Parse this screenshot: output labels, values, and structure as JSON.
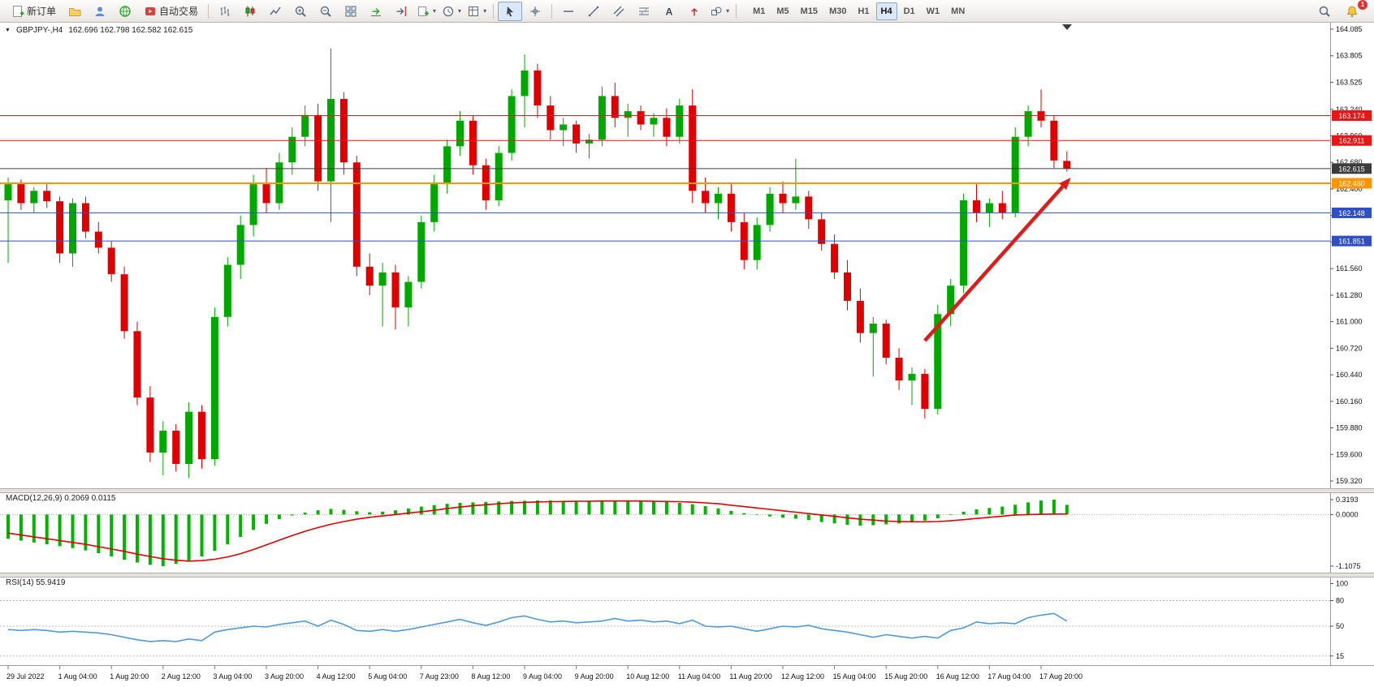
{
  "toolbar": {
    "new_order_label": "新订单",
    "auto_trading_label": "自动交易",
    "timeframes": [
      "M1",
      "M5",
      "M15",
      "M30",
      "H1",
      "H4",
      "D1",
      "W1",
      "MN"
    ],
    "active_timeframe": "H4",
    "notification_count": "1",
    "icon_names": [
      "new-order",
      "folder",
      "user",
      "globe",
      "auto-trading",
      "bar-chart",
      "candlestick",
      "line-chart",
      "zoom-in",
      "zoom-out",
      "tile-windows",
      "auto-scroll",
      "chart-shift",
      "new-chart",
      "periods",
      "templates",
      "cursor",
      "crosshair",
      "horizontal-line",
      "trendline",
      "equidistant-channel",
      "fibonacci",
      "text",
      "arrows",
      "shapes",
      "search",
      "notifications"
    ]
  },
  "chart": {
    "symbol_label": "GBPJPY-,H4",
    "ohlc_label": "162.696 162.798 162.582 162.615",
    "colors": {
      "up": "#00a800",
      "down": "#e00000"
    },
    "price_axis": {
      "max": 164.085,
      "min": 159.32,
      "ticks": [
        "164.085",
        "163.805",
        "163.525",
        "163.240",
        "162.960",
        "162.680",
        "162.400",
        "162.120",
        "161.840",
        "161.560",
        "161.280",
        "161.000",
        "160.720",
        "160.440",
        "160.160",
        "159.880",
        "159.600",
        "159.320"
      ]
    },
    "levels": [
      {
        "price": 163.174,
        "label": "163.174",
        "color": "#e81717",
        "width": 1
      },
      {
        "price": 162.911,
        "label": "162.911",
        "color": "#e81717",
        "width": 1
      },
      {
        "price": 162.615,
        "label": "162.615",
        "color": "#3c3c3c",
        "width": 1
      },
      {
        "price": 162.46,
        "label": "162.460",
        "color": "#ff9500",
        "width": 2
      },
      {
        "price": 162.148,
        "label": "162.148",
        "color": "#2f4fc6",
        "width": 1
      },
      {
        "price": 161.851,
        "label": "161.851",
        "color": "#2f4fc6",
        "width": 1
      }
    ],
    "arrow": {
      "from_bar": 71,
      "from_price": 160.8,
      "to_bar": 82.3,
      "to_price": 162.52,
      "color": "#dd1c1c"
    }
  },
  "chart_data": {
    "type": "candlestick+indicators",
    "symbol": "GBPJPY",
    "timeframe": "H4",
    "bars_per_label": 4,
    "x_labels": [
      "29 Jul 2022",
      "1 Aug 04:00",
      "1 Aug 20:00",
      "2 Aug 12:00",
      "3 Aug 04:00",
      "3 Aug 20:00",
      "4 Aug 12:00",
      "5 Aug 04:00",
      "7 Aug 23:00",
      "8 Aug 12:00",
      "9 Aug 04:00",
      "9 Aug 20:00",
      "10 Aug 12:00",
      "11 Aug 04:00",
      "11 Aug 20:00",
      "12 Aug 12:00",
      "15 Aug 04:00",
      "15 Aug 20:00",
      "16 Aug 12:00",
      "17 Aug 04:00",
      "17 Aug 20:00"
    ],
    "candles": {
      "open": [
        162.28,
        162.45,
        162.25,
        162.38,
        162.27,
        161.72,
        162.25,
        161.95,
        161.78,
        161.5,
        160.9,
        160.2,
        159.62,
        159.85,
        159.5,
        160.05,
        159.55,
        161.05,
        161.6,
        162.02,
        162.45,
        162.25,
        162.68,
        162.95,
        163.18,
        162.48,
        163.35,
        162.68,
        161.58,
        161.38,
        161.52,
        161.15,
        161.42,
        162.05,
        162.45,
        162.85,
        163.12,
        162.65,
        162.28,
        162.78,
        163.38,
        163.65,
        163.28,
        163.02,
        163.08,
        162.88,
        162.92,
        163.38,
        163.15,
        163.22,
        163.08,
        163.15,
        162.95,
        163.28,
        162.38,
        162.25,
        162.35,
        162.05,
        161.65,
        162.02,
        162.35,
        162.25,
        162.32,
        162.08,
        161.82,
        161.52,
        161.22,
        160.88,
        160.98,
        160.62,
        160.38,
        160.45,
        160.08,
        161.08,
        161.38,
        162.28,
        162.15,
        162.25,
        162.15,
        162.95,
        163.22,
        163.12,
        162.696
      ],
      "high": [
        162.52,
        162.5,
        162.42,
        162.45,
        162.32,
        162.3,
        162.32,
        162.05,
        161.85,
        161.58,
        161.0,
        160.32,
        159.95,
        159.92,
        160.15,
        160.12,
        161.15,
        161.68,
        162.12,
        162.55,
        162.62,
        162.78,
        163.05,
        163.28,
        163.3,
        163.88,
        163.42,
        162.75,
        161.72,
        161.62,
        161.6,
        161.48,
        162.12,
        162.55,
        162.92,
        163.22,
        163.18,
        162.72,
        162.85,
        163.45,
        163.82,
        163.72,
        163.38,
        163.15,
        163.12,
        162.98,
        163.48,
        163.52,
        163.3,
        163.28,
        163.2,
        163.25,
        163.35,
        163.45,
        162.52,
        162.42,
        162.45,
        162.15,
        162.1,
        162.42,
        162.48,
        162.72,
        162.38,
        162.15,
        161.92,
        161.65,
        161.35,
        161.05,
        161.02,
        160.72,
        160.52,
        160.5,
        161.18,
        161.45,
        162.35,
        162.45,
        162.3,
        162.38,
        163.05,
        163.28,
        163.45,
        163.18,
        162.798
      ],
      "low": [
        161.62,
        162.18,
        162.15,
        162.2,
        161.62,
        161.58,
        161.88,
        161.72,
        161.42,
        160.82,
        160.12,
        159.52,
        159.38,
        159.42,
        159.35,
        159.45,
        159.48,
        160.95,
        161.45,
        161.9,
        162.15,
        162.18,
        162.55,
        162.85,
        162.38,
        162.05,
        162.55,
        161.48,
        161.28,
        160.95,
        160.92,
        160.95,
        161.35,
        161.95,
        162.35,
        162.75,
        162.55,
        162.18,
        162.22,
        162.7,
        163.05,
        163.15,
        162.92,
        162.85,
        162.78,
        162.72,
        162.85,
        163.05,
        162.95,
        163.02,
        162.95,
        162.85,
        162.88,
        162.25,
        162.15,
        162.08,
        161.95,
        161.55,
        161.55,
        161.95,
        162.15,
        162.18,
        161.98,
        161.75,
        161.45,
        161.12,
        160.78,
        160.42,
        160.55,
        160.28,
        160.12,
        159.98,
        160.02,
        160.95,
        161.3,
        162.05,
        162.0,
        162.08,
        162.1,
        162.85,
        163.05,
        162.62,
        162.582
      ],
      "close": [
        162.45,
        162.25,
        162.38,
        162.27,
        161.72,
        162.25,
        161.95,
        161.78,
        161.5,
        160.9,
        160.2,
        159.62,
        159.85,
        159.5,
        160.05,
        159.55,
        161.05,
        161.6,
        162.02,
        162.45,
        162.25,
        162.68,
        162.95,
        163.18,
        162.48,
        163.35,
        162.68,
        161.58,
        161.38,
        161.52,
        161.15,
        161.42,
        162.05,
        162.45,
        162.85,
        163.12,
        162.65,
        162.28,
        162.78,
        163.38,
        163.65,
        163.28,
        163.02,
        163.08,
        162.88,
        162.92,
        163.38,
        163.15,
        163.22,
        163.08,
        163.15,
        162.95,
        163.28,
        162.38,
        162.25,
        162.35,
        162.05,
        161.65,
        162.02,
        162.35,
        162.25,
        162.32,
        162.08,
        161.82,
        161.52,
        161.22,
        160.88,
        160.98,
        160.62,
        160.38,
        160.45,
        160.08,
        161.08,
        161.38,
        162.28,
        162.15,
        162.25,
        162.15,
        162.95,
        163.22,
        163.12,
        162.7,
        162.615
      ]
    },
    "macd": {
      "label": "MACD(12,26,9) 0.2069 0.0115",
      "axis": [
        "0.3193",
        "0.0000",
        "-1.1075"
      ],
      "range": [
        -1.1075,
        0.3193
      ],
      "colors": {
        "histogram": "#00b400",
        "signal": "#e00000"
      },
      "histogram": [
        -0.52,
        -0.56,
        -0.6,
        -0.64,
        -0.68,
        -0.72,
        -0.77,
        -0.83,
        -0.9,
        -0.97,
        -1.03,
        -1.08,
        -1.1075,
        -1.06,
        -0.99,
        -0.9,
        -0.78,
        -0.64,
        -0.48,
        -0.33,
        -0.2,
        -0.1,
        -0.02,
        0.04,
        0.09,
        0.12,
        0.1,
        0.07,
        0.05,
        0.06,
        0.09,
        0.13,
        0.17,
        0.2,
        0.23,
        0.25,
        0.26,
        0.27,
        0.28,
        0.29,
        0.295,
        0.3,
        0.3,
        0.295,
        0.29,
        0.29,
        0.295,
        0.3,
        0.295,
        0.29,
        0.28,
        0.27,
        0.25,
        0.22,
        0.18,
        0.13,
        0.08,
        0.03,
        -0.01,
        -0.04,
        -0.07,
        -0.09,
        -0.12,
        -0.16,
        -0.19,
        -0.22,
        -0.24,
        -0.23,
        -0.21,
        -0.19,
        -0.17,
        -0.13,
        -0.08,
        -0.01,
        0.06,
        0.11,
        0.14,
        0.17,
        0.21,
        0.26,
        0.3,
        0.3193,
        0.2069
      ],
      "signal": [
        -0.4,
        -0.44,
        -0.48,
        -0.52,
        -0.56,
        -0.6,
        -0.64,
        -0.69,
        -0.74,
        -0.79,
        -0.85,
        -0.9,
        -0.95,
        -0.98,
        -1.0,
        -0.99,
        -0.96,
        -0.91,
        -0.84,
        -0.75,
        -0.65,
        -0.55,
        -0.45,
        -0.36,
        -0.28,
        -0.21,
        -0.15,
        -0.1,
        -0.06,
        -0.03,
        0.0,
        0.03,
        0.06,
        0.09,
        0.13,
        0.16,
        0.19,
        0.21,
        0.23,
        0.25,
        0.26,
        0.27,
        0.275,
        0.28,
        0.285,
        0.285,
        0.29,
        0.29,
        0.29,
        0.29,
        0.285,
        0.28,
        0.275,
        0.265,
        0.25,
        0.23,
        0.2,
        0.17,
        0.14,
        0.11,
        0.08,
        0.05,
        0.02,
        -0.01,
        -0.04,
        -0.07,
        -0.1,
        -0.12,
        -0.14,
        -0.15,
        -0.155,
        -0.155,
        -0.15,
        -0.135,
        -0.11,
        -0.085,
        -0.06,
        -0.035,
        -0.01,
        0.0,
        0.005,
        0.009,
        0.0115
      ]
    },
    "rsi": {
      "label": "RSI(14) 55.9419",
      "color": "#4f9bd6",
      "axis": [
        100,
        80,
        50,
        15
      ],
      "levels": [
        80,
        50,
        15
      ],
      "values": [
        46,
        45,
        46,
        45,
        43,
        44,
        43,
        42,
        40,
        37,
        34,
        32,
        33,
        32,
        35,
        33,
        43,
        46,
        48,
        50,
        49,
        52,
        54,
        56,
        50,
        57,
        52,
        45,
        44,
        46,
        44,
        46,
        49,
        52,
        55,
        58,
        54,
        51,
        55,
        60,
        62,
        58,
        55,
        56,
        54,
        55,
        56,
        59,
        56,
        57,
        55,
        56,
        53,
        57,
        50,
        49,
        50,
        47,
        44,
        47,
        50,
        49,
        51,
        47,
        45,
        43,
        40,
        37,
        40,
        38,
        36,
        38,
        36,
        45,
        48,
        55,
        53,
        54,
        53,
        60,
        63,
        65,
        55.94
      ]
    }
  }
}
